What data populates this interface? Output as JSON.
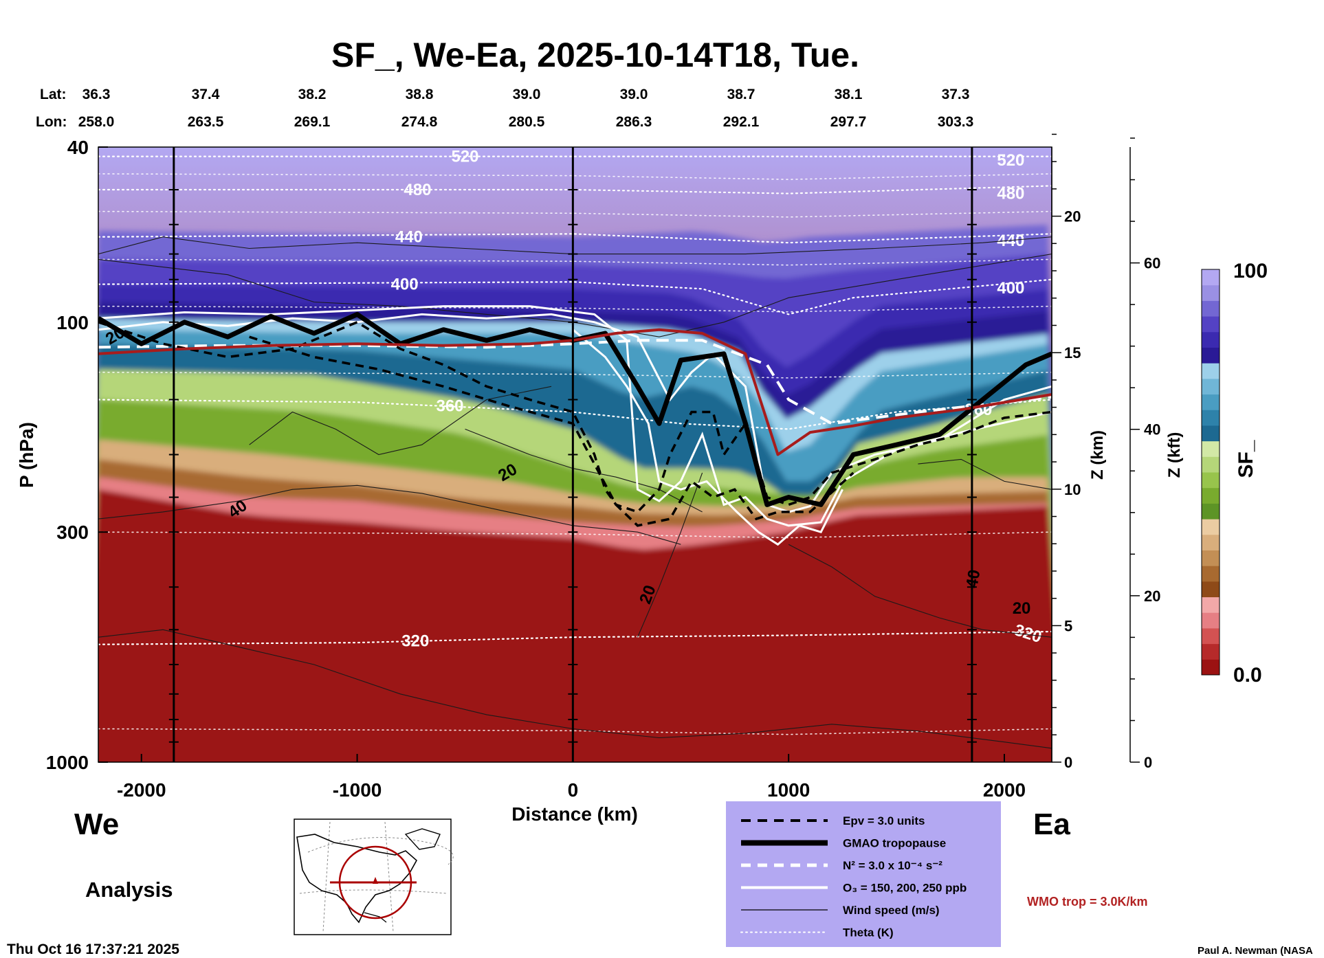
{
  "chart_data": {
    "type": "heatmap",
    "title": "SF_, We-Ea, 2025-10-14T18, Tue.",
    "xlabel": "Distance (km)",
    "ylabel": "P (hPa)",
    "xlim": [
      -2200,
      2220
    ],
    "x_ticks": [
      -2000,
      -1000,
      0,
      1000,
      2000
    ],
    "y_ticks": [
      40,
      100,
      300,
      1000
    ],
    "ylim": [
      1000,
      40
    ],
    "y_scale": "log",
    "z_km_label": "Z (km)",
    "z_km_ticks": [
      0,
      5,
      10,
      15,
      20
    ],
    "z_kft_label": "Z (kft)",
    "z_kft_ticks": [
      0,
      20,
      40,
      60
    ],
    "lat_label": "Lat:",
    "lon_label": "Lon:",
    "lat": [
      "36.3",
      "37.4",
      "38.2",
      "38.8",
      "39.0",
      "39.0",
      "38.7",
      "38.1",
      "37.3"
    ],
    "lon": [
      "258.0",
      "263.5",
      "269.1",
      "274.8",
      "280.5",
      "286.3",
      "292.1",
      "297.7",
      "303.3"
    ],
    "vertical_markers_km": [
      -1850,
      0,
      1850
    ],
    "theta_levels": [
      {
        "label": "520",
        "p": 42
      },
      {
        "label": "480",
        "p": 50
      },
      {
        "label": "440",
        "p": 64
      },
      {
        "label": "400",
        "p": 82
      },
      {
        "label": "360",
        "p": 155
      },
      {
        "label": "320",
        "p": 530
      }
    ],
    "wind_labels": [
      "20",
      "40",
      "20",
      "20",
      "40",
      "20"
    ],
    "wmo_tropopause_hpa": [
      [
        -2200,
        118
      ],
      [
        -1800,
        115
      ],
      [
        -1400,
        113
      ],
      [
        -1000,
        112
      ],
      [
        -600,
        113
      ],
      [
        -200,
        112
      ],
      [
        0,
        110
      ],
      [
        200,
        106
      ],
      [
        400,
        104
      ],
      [
        600,
        106
      ],
      [
        800,
        118
      ],
      [
        950,
        200
      ],
      [
        1100,
        178
      ],
      [
        1300,
        172
      ],
      [
        1500,
        165
      ],
      [
        1800,
        158
      ],
      [
        2220,
        146
      ]
    ],
    "gmao_tropopause_hpa": [
      [
        -2200,
        98
      ],
      [
        -2000,
        112
      ],
      [
        -1800,
        100
      ],
      [
        -1600,
        108
      ],
      [
        -1400,
        97
      ],
      [
        -1200,
        106
      ],
      [
        -1000,
        96
      ],
      [
        -800,
        112
      ],
      [
        -600,
        104
      ],
      [
        -400,
        110
      ],
      [
        -200,
        104
      ],
      [
        0,
        110
      ],
      [
        150,
        106
      ],
      [
        300,
        140
      ],
      [
        400,
        170
      ],
      [
        500,
        122
      ],
      [
        600,
        120
      ],
      [
        700,
        118
      ],
      [
        800,
        170
      ],
      [
        900,
        260
      ],
      [
        1000,
        250
      ],
      [
        1150,
        260
      ],
      [
        1300,
        200
      ],
      [
        1500,
        190
      ],
      [
        1700,
        180
      ],
      [
        1900,
        150
      ],
      [
        2100,
        125
      ],
      [
        2220,
        118
      ]
    ],
    "colorbar": {
      "label": "SF_",
      "max_label": "100",
      "min_label": "0.0",
      "colors": [
        "#9b1212",
        "#b62a2a",
        "#d35252",
        "#e67f84",
        "#f2a8a8",
        "#8e4a18",
        "#a86a30",
        "#c38f55",
        "#d9ae7c",
        "#ebcca2",
        "#5d9426",
        "#79ab2e",
        "#98c44c",
        "#b5d679",
        "#d2e8a6",
        "#1d6991",
        "#2e82aa",
        "#4a9dc2",
        "#70b6d7",
        "#9dd0ea",
        "#2a1a96",
        "#3b2ab0",
        "#5442c4",
        "#7367d3",
        "#9a90e4",
        "#b3a8f2"
      ]
    },
    "legend": [
      {
        "label": "Epv = 3.0 units",
        "style": "black-dashed"
      },
      {
        "label": "GMAO tropopause",
        "style": "black-thick"
      },
      {
        "label": "N² = 3.0 x 10⁻⁴ s⁻²",
        "style": "white-dashed"
      },
      {
        "label": "O₃ = 150, 200, 250 ppb",
        "style": "white-solid"
      },
      {
        "label": "Wind speed (m/s)",
        "style": "black-thin"
      },
      {
        "label": "Theta (K)",
        "style": "white-dotted"
      }
    ],
    "wmo_label": "WMO trop = 3.0K/km",
    "west_label": "We",
    "east_label": "Ea",
    "analysis_label": "Analysis",
    "timestamp": "Thu Oct 16 17:37:21 2025",
    "credit": "Paul A. Newman (NASA"
  }
}
